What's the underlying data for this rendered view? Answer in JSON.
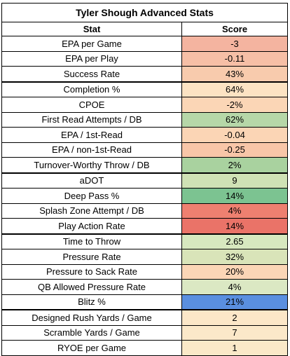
{
  "table": {
    "title": "Tyler Shough Advanced Stats",
    "headers": {
      "stat": "Stat",
      "score": "Score"
    },
    "rows": [
      {
        "stat": "EPA per Game",
        "score": "-3",
        "color": "#f4b4a0",
        "group_start": false
      },
      {
        "stat": "EPA per Play",
        "score": "-0.11",
        "color": "#f6bfa6",
        "group_start": false
      },
      {
        "stat": "Success Rate",
        "score": "43%",
        "color": "#f8cbad",
        "group_start": false
      },
      {
        "stat": "Completion %",
        "score": "64%",
        "color": "#fce3c3",
        "group_start": true
      },
      {
        "stat": "CPOE",
        "score": "-2%",
        "color": "#fbd6b6",
        "group_start": false
      },
      {
        "stat": "First Read Attempts / DB",
        "score": "62%",
        "color": "#b6d7a8",
        "group_start": false
      },
      {
        "stat": "EPA / 1st-Read",
        "score": "-0.04",
        "color": "#fbd5b5",
        "group_start": false
      },
      {
        "stat": "EPA / non-1st-Read",
        "score": "-0.25",
        "color": "#f8c6a8",
        "group_start": false
      },
      {
        "stat": "Turnover-Worthy Throw / DB",
        "score": "2%",
        "color": "#a9d29f",
        "group_start": false
      },
      {
        "stat": "aDOT",
        "score": "9",
        "color": "#cfe2b5",
        "group_start": true
      },
      {
        "stat": "Deep Pass %",
        "score": "14%",
        "color": "#7cc391",
        "group_start": false
      },
      {
        "stat": "Splash Zone Attempt / DB",
        "score": "4%",
        "color": "#ee8070",
        "group_start": false
      },
      {
        "stat": "Play Action Rate",
        "score": "14%",
        "color": "#ea7368",
        "group_start": false
      },
      {
        "stat": "Time to Throw",
        "score": "2.65",
        "color": "#d7e8bf",
        "group_start": true
      },
      {
        "stat": "Pressure Rate",
        "score": "32%",
        "color": "#d9e4b9",
        "group_start": false
      },
      {
        "stat": "Pressure to Sack Rate",
        "score": "20%",
        "color": "#fbd6b6",
        "group_start": false
      },
      {
        "stat": "QB Allowed Pressure Rate",
        "score": "4%",
        "color": "#dbe8c3",
        "group_start": false
      },
      {
        "stat": "Blitz %",
        "score": "21%",
        "color": "#5a8fe0",
        "group_start": false
      },
      {
        "stat": "Designed Rush Yards / Game",
        "score": "2",
        "color": "#fce7c8",
        "group_start": true
      },
      {
        "stat": "Scramble Yards / Game",
        "score": "7",
        "color": "#fbe8c9",
        "group_start": false
      },
      {
        "stat": "RYOE per Game",
        "score": "1",
        "color": "#fae9c8",
        "group_start": false
      }
    ]
  }
}
